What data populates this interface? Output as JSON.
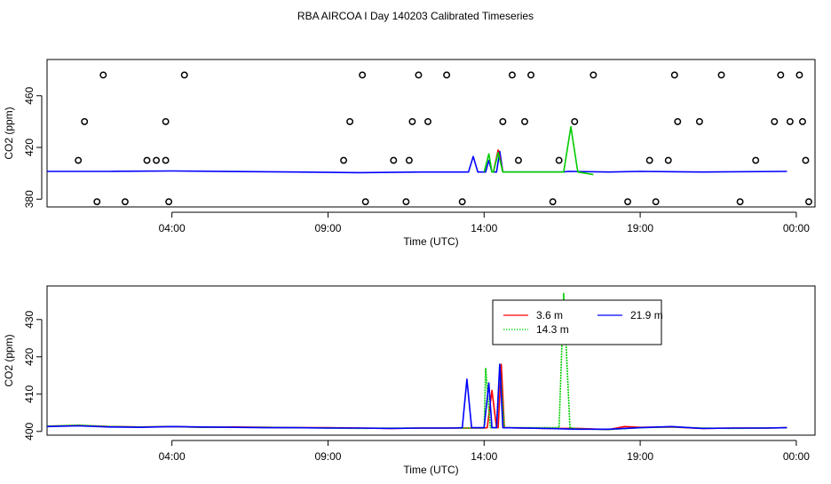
{
  "title": "RBA AIRCOA I  Day 140203  Calibrated Timeseries",
  "colors": {
    "red": "#ff0000",
    "green": "#00cc00",
    "blue": "#0000ff",
    "black": "#000000"
  },
  "chart_data": [
    {
      "type": "line",
      "xlabel": "Time (UTC)",
      "ylabel": "CO2 (ppm)",
      "xlim": [
        0,
        24.6
      ],
      "ylim": [
        374,
        488
      ],
      "x_ticks": [
        {
          "x": 4,
          "label": "04:00"
        },
        {
          "x": 9,
          "label": "09:00"
        },
        {
          "x": 14,
          "label": "14:00"
        },
        {
          "x": 19,
          "label": "19:00"
        },
        {
          "x": 24,
          "label": "00:00"
        }
      ],
      "y_ticks": [
        {
          "y": 380,
          "label": "380"
        },
        {
          "y": 420,
          "label": "420"
        },
        {
          "y": 460,
          "label": "460"
        }
      ],
      "grid": false,
      "series": [
        {
          "color": "#0000ff",
          "points": [
            [
              0,
              401.5
            ],
            [
              2,
              401.5
            ],
            [
              4,
              401.8
            ],
            [
              8,
              401
            ],
            [
              10,
              400.5
            ],
            [
              12,
              401
            ],
            [
              13.5,
              401
            ],
            [
              13.65,
              413
            ],
            [
              13.8,
              401
            ],
            [
              14.05,
              401
            ],
            [
              14.15,
              410
            ],
            [
              14.25,
              401
            ],
            [
              14.4,
              401
            ],
            [
              14.5,
              417
            ],
            [
              14.6,
              401
            ],
            [
              16.5,
              401
            ],
            [
              16.7,
              401.5
            ],
            [
              18,
              401
            ],
            [
              19,
              401.5
            ],
            [
              21,
              401
            ],
            [
              23.7,
              401.5
            ]
          ]
        },
        {
          "color": "#ff0000",
          "points": [
            [
              14.3,
              401
            ],
            [
              14.45,
              418
            ],
            [
              14.6,
              401
            ]
          ]
        },
        {
          "color": "#00cc00",
          "points": [
            [
              14,
              401
            ],
            [
              14.15,
              415
            ],
            [
              14.25,
              401
            ],
            [
              14.3,
              401
            ],
            [
              14.45,
              416
            ],
            [
              14.6,
              401
            ],
            [
              16.55,
              401
            ],
            [
              16.78,
              436
            ],
            [
              17.0,
              401
            ],
            [
              17.5,
              399
            ]
          ]
        }
      ],
      "markers": [
        [
          1.6,
          378
        ],
        [
          1.0,
          410
        ],
        [
          1.2,
          440
        ],
        [
          1.8,
          476
        ],
        [
          3.5,
          410
        ],
        [
          2.5,
          378
        ],
        [
          3.2,
          410
        ],
        [
          4.4,
          476
        ],
        [
          3.8,
          440
        ],
        [
          3.8,
          410
        ],
        [
          3.9,
          378
        ],
        [
          9.5,
          410
        ],
        [
          9.7,
          440
        ],
        [
          10.1,
          476
        ],
        [
          10.2,
          378
        ],
        [
          11.1,
          410
        ],
        [
          11.5,
          378
        ],
        [
          11.6,
          410
        ],
        [
          11.7,
          440
        ],
        [
          11.9,
          476
        ],
        [
          12.2,
          440
        ],
        [
          12.8,
          476
        ],
        [
          13.3,
          378
        ],
        [
          14.6,
          440
        ],
        [
          14.9,
          476
        ],
        [
          15.3,
          440
        ],
        [
          15.5,
          476
        ],
        [
          15.1,
          410
        ],
        [
          16.2,
          378
        ],
        [
          16.4,
          410
        ],
        [
          16.9,
          440
        ],
        [
          17.5,
          476
        ],
        [
          18.6,
          378
        ],
        [
          19.3,
          410
        ],
        [
          19.5,
          378
        ],
        [
          19.9,
          410
        ],
        [
          20.1,
          476
        ],
        [
          20.2,
          440
        ],
        [
          20.9,
          440
        ],
        [
          21.6,
          476
        ],
        [
          22.2,
          378
        ],
        [
          22.7,
          410
        ],
        [
          23.3,
          440
        ],
        [
          23.5,
          476
        ],
        [
          23.8,
          440
        ],
        [
          24.1,
          476
        ],
        [
          24.2,
          440
        ],
        [
          24.3,
          410
        ],
        [
          24.4,
          378
        ]
      ]
    },
    {
      "type": "line",
      "xlabel": "Time (UTC)",
      "ylabel": "CO2 (ppm)",
      "xlim": [
        0,
        24.6
      ],
      "ylim": [
        399,
        439
      ],
      "x_ticks": [
        {
          "x": 4,
          "label": "04:00"
        },
        {
          "x": 9,
          "label": "09:00"
        },
        {
          "x": 14,
          "label": "14:00"
        },
        {
          "x": 19,
          "label": "19:00"
        },
        {
          "x": 24,
          "label": "00:00"
        }
      ],
      "y_ticks": [
        {
          "y": 400,
          "label": "400"
        },
        {
          "y": 410,
          "label": "410"
        },
        {
          "y": 420,
          "label": "420"
        },
        {
          "y": 430,
          "label": "430"
        }
      ],
      "grid": false,
      "legend": {
        "position": "top-right",
        "entries": [
          {
            "label": "3.6 m",
            "color": "#ff0000",
            "dash": "solid"
          },
          {
            "label": "14.3 m",
            "color": "#00cc00",
            "dash": "dotted"
          },
          {
            "label": "21.9 m",
            "color": "#0000ff",
            "dash": "solid"
          }
        ]
      },
      "series": [
        {
          "name": "3.6 m",
          "color": "#ff0000",
          "points": [
            [
              0,
              401.4
            ],
            [
              1,
              401.6
            ],
            [
              2,
              401.3
            ],
            [
              3,
              401.2
            ],
            [
              4,
              401.3
            ],
            [
              5,
              401.1
            ],
            [
              6,
              401.2
            ],
            [
              7,
              401.1
            ],
            [
              8,
              401
            ],
            [
              9,
              401
            ],
            [
              10,
              400.9
            ],
            [
              11,
              400.8
            ],
            [
              12,
              400.9
            ],
            [
              13,
              400.9
            ],
            [
              14,
              400.9
            ],
            [
              14.1,
              401
            ],
            [
              14.25,
              411
            ],
            [
              14.4,
              401
            ],
            [
              14.45,
              401
            ],
            [
              14.55,
              418
            ],
            [
              14.65,
              401
            ],
            [
              16,
              400.8
            ],
            [
              17,
              400.8
            ],
            [
              18,
              400.5
            ],
            [
              18.5,
              401.3
            ],
            [
              19,
              401.1
            ],
            [
              20,
              401.2
            ],
            [
              21,
              400.8
            ],
            [
              22,
              400.9
            ],
            [
              23,
              400.9
            ],
            [
              23.7,
              401
            ]
          ]
        },
        {
          "name": "14.3 m",
          "color": "#00cc00",
          "dash": "dotted",
          "points": [
            [
              0,
              401.4
            ],
            [
              1,
              401.7
            ],
            [
              2,
              401.3
            ],
            [
              3,
              401.2
            ],
            [
              4,
              401.3
            ],
            [
              5,
              401.1
            ],
            [
              6,
              401.1
            ],
            [
              7,
              401.1
            ],
            [
              8,
              401
            ],
            [
              9,
              400.9
            ],
            [
              10,
              400.8
            ],
            [
              11,
              400.9
            ],
            [
              12,
              400.9
            ],
            [
              13,
              400.9
            ],
            [
              14,
              400.9
            ],
            [
              14.05,
              417
            ],
            [
              14.2,
              401
            ],
            [
              14.4,
              401
            ],
            [
              14.5,
              418
            ],
            [
              14.65,
              401
            ],
            [
              16.4,
              401
            ],
            [
              16.55,
              437
            ],
            [
              16.75,
              401
            ],
            [
              17,
              400.7
            ],
            [
              18,
              400.5
            ],
            [
              19,
              401
            ],
            [
              20,
              401.2
            ],
            [
              21,
              400.9
            ],
            [
              22,
              400.8
            ],
            [
              23,
              400.9
            ],
            [
              23.7,
              401
            ]
          ]
        },
        {
          "name": "21.9 m",
          "color": "#0000ff",
          "points": [
            [
              0,
              401.3
            ],
            [
              1,
              401.5
            ],
            [
              2,
              401.2
            ],
            [
              3,
              401.1
            ],
            [
              4,
              401.3
            ],
            [
              5,
              401.2
            ],
            [
              6,
              401.1
            ],
            [
              7,
              401
            ],
            [
              8,
              401
            ],
            [
              9,
              400.9
            ],
            [
              10,
              400.9
            ],
            [
              11,
              400.8
            ],
            [
              12,
              400.9
            ],
            [
              13,
              400.9
            ],
            [
              13.3,
              401
            ],
            [
              13.45,
              414
            ],
            [
              13.6,
              401
            ],
            [
              14,
              401
            ],
            [
              14.15,
              413
            ],
            [
              14.25,
              401
            ],
            [
              14.4,
              401
            ],
            [
              14.5,
              418
            ],
            [
              14.6,
              401
            ],
            [
              16,
              400.8
            ],
            [
              17,
              400.6
            ],
            [
              18,
              400.6
            ],
            [
              19,
              401
            ],
            [
              20,
              401.3
            ],
            [
              21,
              400.8
            ],
            [
              22,
              400.9
            ],
            [
              23,
              400.9
            ],
            [
              23.7,
              401
            ]
          ]
        }
      ]
    }
  ]
}
